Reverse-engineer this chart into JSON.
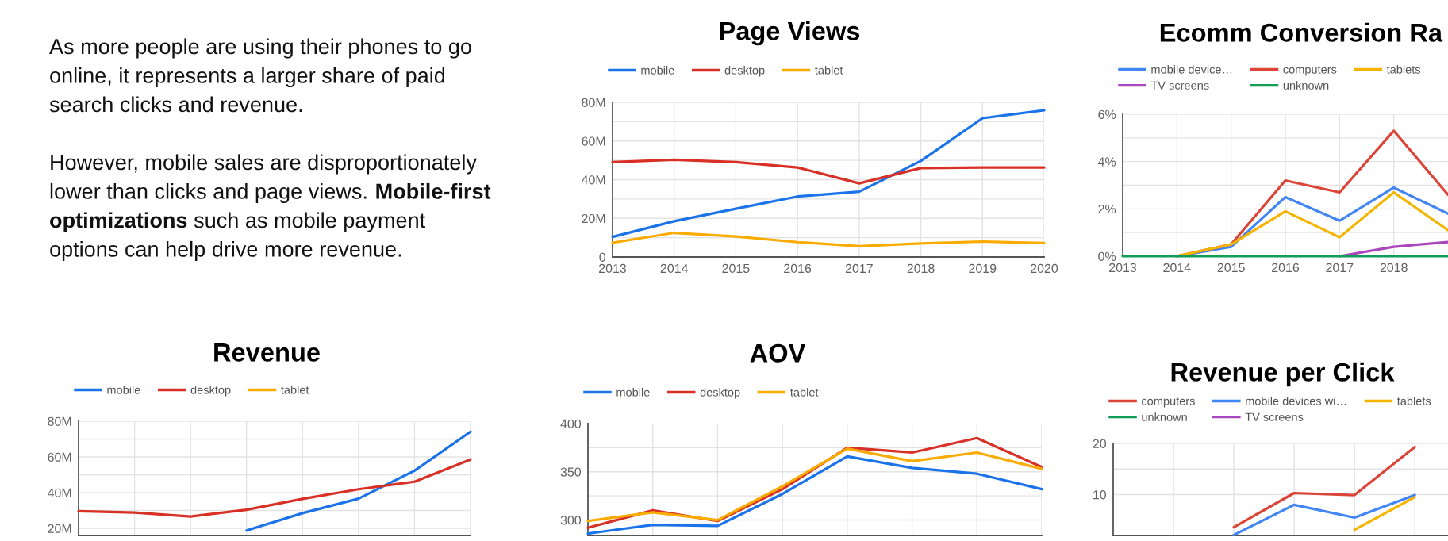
{
  "chart_data": [
    {
      "type": "other",
      "annotations": [
        "As more people are using their phones to go\nonline, it represents a larger share of paid\nsearch clicks and revenue.",
        "However, mobile sales are disproportionately\nlower than clicks and page views.",
        "Mobile-first\noptimizations",
        "such as mobile payment\noptions can help drive more revenue."
      ]
    },
    {
      "type": "line",
      "title": "Page Views",
      "x": [
        2013,
        2014,
        2015,
        2016,
        2017,
        2018,
        2019,
        2020
      ],
      "xlim": [
        2013,
        2020
      ],
      "xticks": [
        2013,
        2014,
        2015,
        2016,
        2017,
        2018,
        2019,
        2020
      ],
      "ylim": [
        0,
        80
      ],
      "yticks": [
        0,
        {
          "value": 10,
          "label": null
        },
        {
          "value": 20,
          "label": "20M"
        },
        {
          "value": 30,
          "label": null
        },
        {
          "value": 40,
          "label": "40M"
        },
        {
          "value": 50,
          "label": null
        },
        {
          "value": 60,
          "label": "60M"
        },
        {
          "value": 70,
          "label": null
        },
        {
          "value": 80,
          "label": "80M"
        }
      ],
      "grid": true,
      "legend": "top left",
      "series": [
        {
          "name": "mobile",
          "color": "#1a73e8",
          "values": [
            10.4,
            18.5,
            25.0,
            31.3,
            33.8,
            49.7,
            71.8,
            75.9
          ]
        },
        {
          "name": "desktop",
          "color": "#d93025",
          "values": [
            49.1,
            50.3,
            49.1,
            46.3,
            38.1,
            46.0,
            46.3,
            46.3
          ]
        },
        {
          "name": "tablet",
          "color": "#f9ab00",
          "values": [
            7.4,
            12.5,
            10.6,
            7.7,
            5.6,
            7.0,
            8.0,
            7.2
          ]
        }
      ]
    },
    {
      "type": "line",
      "title": "Ecomm Conversion Ra",
      "x": [
        2013,
        2014,
        2015,
        2016,
        2017,
        2018,
        2019
      ],
      "xlim": [
        2013,
        2019
      ],
      "xticks": [
        2013,
        2014,
        2015,
        2016,
        2017,
        2018
      ],
      "ylim": [
        0,
        6
      ],
      "yticks": [
        {
          "value": 0,
          "label": "0%"
        },
        {
          "value": 1,
          "label": null
        },
        {
          "value": 2,
          "label": "2%"
        },
        {
          "value": 3,
          "label": null
        },
        {
          "value": 4,
          "label": "4%"
        },
        {
          "value": 5,
          "label": null
        },
        {
          "value": 6,
          "label": "6%"
        }
      ],
      "grid": true,
      "legend": "top left",
      "series": [
        {
          "name": "mobile device…",
          "color": "#4285f4",
          "values": [
            null,
            0,
            0.4,
            2.5,
            1.5,
            2.9,
            1.8
          ]
        },
        {
          "name": "computers",
          "color": "#db4437",
          "values": [
            null,
            0,
            0.5,
            3.2,
            2.7,
            5.3,
            2.6
          ]
        },
        {
          "name": "tablets",
          "color": "#f4b400",
          "values": [
            null,
            0,
            0.5,
            1.9,
            0.8,
            2.7,
            1.1
          ]
        },
        {
          "name": "TV screens",
          "color": "#ab47bc",
          "values": [
            null,
            null,
            null,
            null,
            0,
            0.4,
            0.6
          ]
        },
        {
          "name": "unknown",
          "color": "#0f9d58",
          "values": [
            0,
            0,
            0,
            0,
            0,
            0,
            0
          ]
        }
      ]
    },
    {
      "type": "line",
      "title": "Revenue",
      "categories": [
        null,
        null,
        null,
        null,
        null,
        null,
        null,
        null
      ],
      "tick_labels": "y",
      "ylim": [
        16,
        80
      ],
      "yticks": [
        {
          "value": 20,
          "label": "20M"
        },
        {
          "value": 30,
          "label": null
        },
        {
          "value": 40,
          "label": "40M"
        },
        {
          "value": 50,
          "label": null
        },
        {
          "value": 60,
          "label": "60M"
        },
        {
          "value": 70,
          "label": null
        },
        {
          "value": 80,
          "label": "80M"
        }
      ],
      "grid": true,
      "legend": "top left",
      "series": [
        {
          "name": "mobile",
          "color": "#1a73e8",
          "values": [
            null,
            null,
            null,
            18.8,
            28.5,
            36.6,
            52.3,
            74.1
          ]
        },
        {
          "name": "desktop",
          "color": "#d93025",
          "values": [
            29.6,
            28.8,
            26.6,
            30.4,
            36.5,
            41.9,
            46.1,
            58.6
          ]
        },
        {
          "name": "tablet",
          "color": "#f9ab00",
          "values": [
            null,
            null,
            null,
            null,
            null,
            null,
            null,
            null
          ]
        }
      ]
    },
    {
      "type": "line",
      "title": "AOV",
      "categories": [
        null,
        null,
        null,
        null,
        null,
        null,
        null,
        null
      ],
      "tick_labels": "y",
      "ylim": [
        284,
        400
      ],
      "yticks": [
        300,
        {
          "value": 325,
          "label": null
        },
        350,
        {
          "value": 375,
          "label": null
        },
        400
      ],
      "grid": true,
      "legend": "top left",
      "series": [
        {
          "name": "mobile",
          "color": "#1a73e8",
          "values": [
            286,
            295,
            294,
            327,
            366,
            354,
            348,
            332
          ]
        },
        {
          "name": "desktop",
          "color": "#d93025",
          "values": [
            292,
            310,
            299,
            332,
            375,
            370,
            385,
            355
          ]
        },
        {
          "name": "tablet",
          "color": "#f9ab00",
          "values": [
            299,
            308,
            300,
            335,
            374,
            361,
            370,
            353
          ]
        }
      ]
    },
    {
      "type": "line",
      "title": "Revenue per Click",
      "categories": [
        null,
        null,
        null,
        null,
        null,
        null
      ],
      "tick_labels": "y",
      "ylim": [
        2,
        20
      ],
      "yticks": [
        10,
        {
          "value": 15,
          "label": null
        },
        20
      ],
      "grid": true,
      "legend": "top left",
      "series": [
        {
          "name": "computers",
          "color": "#db4437",
          "values": [
            null,
            null,
            3.6,
            10.3,
            9.9,
            19.3
          ]
        },
        {
          "name": "mobile devices wi…",
          "color": "#4285f4",
          "values": [
            null,
            null,
            2.1,
            8.0,
            5.5,
            9.9
          ]
        },
        {
          "name": "tablets",
          "color": "#f4b400",
          "values": [
            null,
            null,
            null,
            null,
            3.1,
            9.5
          ]
        },
        {
          "name": "unknown",
          "color": "#0f9d58",
          "values": [
            null,
            null,
            null,
            null,
            null,
            null
          ]
        },
        {
          "name": "TV screens",
          "color": "#ab47bc",
          "values": [
            null,
            null,
            null,
            null,
            null,
            null
          ]
        }
      ]
    }
  ]
}
